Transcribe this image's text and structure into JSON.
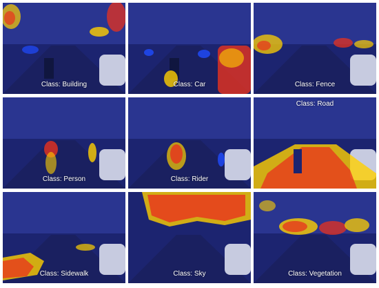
{
  "figure": {
    "panels": [
      {
        "id": "building",
        "caption": "Class: Building"
      },
      {
        "id": "car",
        "caption": "Class: Car"
      },
      {
        "id": "fence",
        "caption": "Class: Fence"
      },
      {
        "id": "person",
        "caption": "Class: Person"
      },
      {
        "id": "rider",
        "caption": "Class: Rider"
      },
      {
        "id": "road",
        "caption": "Class: Road"
      },
      {
        "id": "sidewalk",
        "caption": "Class: Sidewalk"
      },
      {
        "id": "sky",
        "caption": "Class: Sky"
      },
      {
        "id": "vegetation",
        "caption": "Class: Vegetation"
      }
    ]
  },
  "colors": {
    "scene_base": "#1c2470",
    "scene_sky": "#2a3590",
    "scene_dark": "#10163f",
    "heat_low": "#1f4cff",
    "heat_mid": "#ffd000",
    "heat_high": "#e8321e"
  }
}
